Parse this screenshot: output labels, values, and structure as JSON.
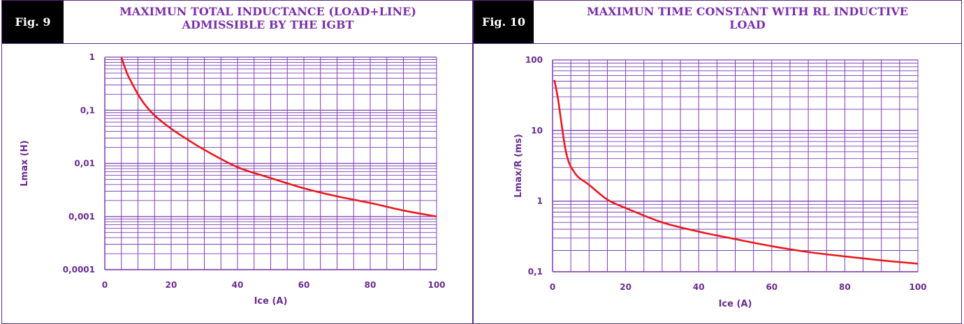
{
  "figures": [
    {
      "tag": "Fig. 9",
      "title_lines": [
        "MAXIMUN TOTAL INDUCTANCE (LOAD+LINE)",
        "ADMISSIBLE BY THE IGBT"
      ]
    },
    {
      "tag": "Fig. 10",
      "title_lines": [
        "MAXIMUN TIME CONSTANT WITH RL INDUCTIVE",
        "LOAD"
      ]
    }
  ],
  "colors": {
    "grid": "#7b3fb0",
    "curve": "#e8191d",
    "text": "#6a2c8e",
    "title": "#7b2fa8"
  },
  "chart_data": [
    {
      "type": "line",
      "scale": {
        "x": "linear",
        "y": "log"
      },
      "grid": true,
      "xlabel": "Ice (A)",
      "ylabel": "Lmax (H)",
      "xlim": [
        0,
        100
      ],
      "ylim": [
        0.0001,
        1
      ],
      "x_tick_labels": [
        "0",
        "20",
        "40",
        "60",
        "80",
        "100"
      ],
      "y_tick_labels": [
        "0,0001",
        "0,001",
        "0,01",
        "0,1",
        "1"
      ],
      "series": [
        {
          "x": [
            5,
            6,
            7,
            8,
            10,
            12,
            15,
            20,
            25,
            30,
            40,
            50,
            60,
            70,
            80,
            90,
            100
          ],
          "y": [
            1.0,
            0.65,
            0.45,
            0.34,
            0.2,
            0.13,
            0.08,
            0.045,
            0.028,
            0.018,
            0.0085,
            0.0053,
            0.0034,
            0.0024,
            0.0018,
            0.0013,
            0.001
          ]
        }
      ]
    },
    {
      "type": "line",
      "scale": {
        "x": "linear",
        "y": "log"
      },
      "grid": true,
      "xlabel": "Ice (A)",
      "ylabel": "Lmax/R (ms)",
      "xlim": [
        0,
        100
      ],
      "ylim": [
        0.1,
        100
      ],
      "x_tick_labels": [
        "0",
        "20",
        "40",
        "60",
        "80",
        "100"
      ],
      "y_tick_labels": [
        "0,1",
        "1",
        "10",
        "100"
      ],
      "series": [
        {
          "x": [
            0.5,
            1.5,
            2.5,
            3.5,
            4.5,
            5.5,
            7,
            10,
            15,
            20,
            30,
            40,
            50,
            60,
            70,
            80,
            90,
            100
          ],
          "y": [
            52,
            28,
            12,
            5.5,
            3.5,
            2.8,
            2.2,
            1.7,
            1.05,
            0.8,
            0.5,
            0.37,
            0.29,
            0.23,
            0.19,
            0.165,
            0.145,
            0.13
          ]
        }
      ]
    }
  ]
}
